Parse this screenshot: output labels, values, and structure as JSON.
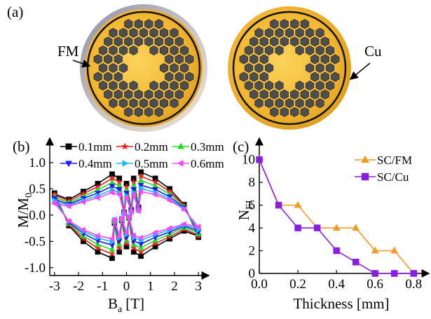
{
  "figure": {
    "panel_labels": [
      "(a)",
      "(b)",
      "(c)"
    ],
    "annotations": [
      "FM",
      "Cu"
    ]
  },
  "chart_data": [
    {
      "type": "line",
      "xlabel": [
        "B",
        "a",
        "[T]"
      ],
      "ylabel": [
        "M/M",
        "0"
      ],
      "x": [
        -3,
        -2.4,
        -1.8,
        -1.2,
        -0.6,
        -0.5,
        -0.3,
        -0.2,
        0,
        0.1,
        0.3,
        0.6,
        1.2,
        1.8,
        2.4,
        3,
        3,
        2.4,
        1.8,
        1.2,
        0.6,
        0.5,
        0.3,
        0.2,
        0,
        -0.1,
        -0.3,
        -0.6,
        -1.2,
        -1.8,
        -2.4,
        -3
      ],
      "xlim": [
        -3.2,
        3.2
      ],
      "xticks": [
        -3,
        -2,
        -1,
        0,
        1,
        2,
        3
      ],
      "ylim": [
        -1.15,
        1.36
      ],
      "yticks": [
        {
          "value": -1,
          "label": "-1.0"
        },
        -0.5,
        {
          "value": 0,
          "label": "0.0"
        },
        0.5,
        {
          "value": 1,
          "label": "1.0"
        }
      ],
      "series": [
        {
          "name": "0.1mm",
          "color": "#000000",
          "marker": "square",
          "values": [
            0.42,
            -0.2,
            -0.5,
            -0.7,
            -0.82,
            -0.15,
            -0.7,
            -0.1,
            -0.6,
            -0.05,
            -0.7,
            -0.78,
            -0.6,
            -0.45,
            -0.3,
            -0.4,
            -0.42,
            0.2,
            0.5,
            0.7,
            0.82,
            0.15,
            0.7,
            0.1,
            0.6,
            0.05,
            0.7,
            0.78,
            0.6,
            0.45,
            0.3,
            0.4
          ]
        },
        {
          "name": "0.2mm",
          "color": "#ff1a1a",
          "marker": "star",
          "values": [
            0.4,
            -0.18,
            -0.45,
            -0.63,
            -0.74,
            -0.14,
            -0.63,
            -0.09,
            -0.54,
            -0.05,
            -0.63,
            -0.7,
            -0.54,
            -0.41,
            -0.27,
            -0.38,
            -0.4,
            0.18,
            0.45,
            0.63,
            0.74,
            0.14,
            0.63,
            0.09,
            0.54,
            0.05,
            0.63,
            0.7,
            0.54,
            0.41,
            0.27,
            0.38
          ]
        },
        {
          "name": "0.3mm",
          "color": "#22dd22",
          "marker": "triangle-up",
          "values": [
            0.36,
            -0.16,
            -0.4,
            -0.56,
            -0.66,
            -0.12,
            -0.56,
            -0.08,
            -0.48,
            -0.04,
            -0.56,
            -0.62,
            -0.48,
            -0.36,
            -0.24,
            -0.34,
            -0.36,
            0.16,
            0.4,
            0.56,
            0.66,
            0.12,
            0.56,
            0.08,
            0.48,
            0.04,
            0.56,
            0.62,
            0.48,
            0.36,
            0.24,
            0.34
          ]
        },
        {
          "name": "0.4mm",
          "color": "#1a1aff",
          "marker": "triangle-down",
          "values": [
            0.32,
            -0.14,
            -0.35,
            -0.49,
            -0.57,
            -0.11,
            -0.49,
            -0.07,
            -0.42,
            -0.04,
            -0.49,
            -0.55,
            -0.42,
            -0.32,
            -0.21,
            -0.3,
            -0.32,
            0.14,
            0.35,
            0.49,
            0.57,
            0.11,
            0.49,
            0.07,
            0.42,
            0.04,
            0.49,
            0.55,
            0.42,
            0.32,
            0.21,
            0.3
          ]
        },
        {
          "name": "0.5mm",
          "color": "#1ab8ff",
          "marker": "triangle-right",
          "values": [
            0.28,
            -0.12,
            -0.31,
            -0.43,
            -0.51,
            -0.09,
            -0.43,
            -0.06,
            -0.37,
            -0.03,
            -0.43,
            -0.48,
            -0.37,
            -0.28,
            -0.19,
            -0.26,
            -0.28,
            0.12,
            0.31,
            0.43,
            0.51,
            0.09,
            0.43,
            0.06,
            0.37,
            0.03,
            0.43,
            0.48,
            0.37,
            0.28,
            0.19,
            0.26
          ]
        },
        {
          "name": "0.6mm",
          "color": "#ff44ff",
          "marker": "triangle-left",
          "values": [
            0.23,
            -0.11,
            -0.28,
            -0.39,
            -0.45,
            -0.08,
            -0.39,
            -0.06,
            -0.33,
            -0.03,
            -0.39,
            -0.43,
            -0.33,
            -0.25,
            -0.17,
            -0.22,
            -0.23,
            0.11,
            0.28,
            0.39,
            0.45,
            0.08,
            0.39,
            0.06,
            0.33,
            0.03,
            0.39,
            0.43,
            0.33,
            0.25,
            0.17,
            0.22
          ]
        }
      ]
    },
    {
      "type": "line",
      "xlabel": "Thickness [mm]",
      "ylabel": [
        "N",
        "FJ"
      ],
      "x": [
        0,
        0.1,
        0.2,
        0.3,
        0.4,
        0.5,
        0.6,
        0.7,
        0.8
      ],
      "xlim": [
        0,
        0.85
      ],
      "xticks": [
        {
          "value": 0,
          "label": "0.0"
        },
        0.2,
        0.4,
        0.6,
        0.8
      ],
      "ylim": [
        0,
        11.4
      ],
      "yticks": [
        0,
        2,
        4,
        6,
        8,
        10
      ],
      "series": [
        {
          "name": "SC/FM",
          "color": "#f39a2a",
          "marker": "triangle-up",
          "values": [
            10,
            6,
            6,
            4,
            4,
            4,
            2,
            2,
            0
          ]
        },
        {
          "name": "SC/Cu",
          "color": "#8a1ee0",
          "marker": "square",
          "values": [
            10,
            6,
            4,
            4,
            2,
            1,
            0,
            0,
            0
          ]
        }
      ]
    }
  ]
}
